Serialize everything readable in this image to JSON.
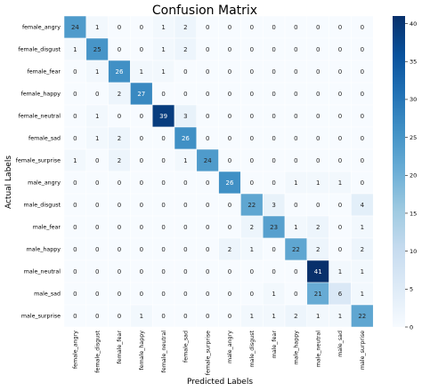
{
  "chart_data": {
    "type": "heatmap",
    "title": "Confusion Matrix",
    "xlabel": "Predicted Labels",
    "ylabel": "Actual Labels",
    "labels": [
      "female_angry",
      "female_disgust",
      "female_fear",
      "female_happy",
      "female_neutral",
      "female_sad",
      "female_surprise",
      "male_angry",
      "male_disgust",
      "male_fear",
      "male_happy",
      "male_neutral",
      "male_sad",
      "male_surprise"
    ],
    "matrix": [
      [
        24,
        1,
        0,
        0,
        1,
        2,
        0,
        0,
        0,
        0,
        0,
        0,
        0,
        0
      ],
      [
        1,
        25,
        0,
        0,
        1,
        2,
        0,
        0,
        0,
        0,
        0,
        0,
        0,
        0
      ],
      [
        0,
        1,
        26,
        1,
        1,
        0,
        0,
        0,
        0,
        0,
        0,
        0,
        0,
        0
      ],
      [
        0,
        0,
        2,
        27,
        0,
        0,
        0,
        0,
        0,
        0,
        0,
        0,
        0,
        0
      ],
      [
        0,
        1,
        0,
        0,
        39,
        3,
        0,
        0,
        0,
        0,
        0,
        0,
        0,
        0
      ],
      [
        0,
        1,
        2,
        0,
        0,
        26,
        0,
        0,
        0,
        0,
        0,
        0,
        0,
        0
      ],
      [
        1,
        0,
        2,
        0,
        0,
        1,
        24,
        0,
        0,
        0,
        0,
        0,
        0,
        0
      ],
      [
        0,
        0,
        0,
        0,
        0,
        0,
        0,
        26,
        0,
        0,
        1,
        1,
        1,
        0
      ],
      [
        0,
        0,
        0,
        0,
        0,
        0,
        0,
        0,
        22,
        3,
        0,
        0,
        0,
        4
      ],
      [
        0,
        0,
        0,
        0,
        0,
        0,
        0,
        0,
        2,
        23,
        1,
        2,
        0,
        1
      ],
      [
        0,
        0,
        0,
        0,
        0,
        0,
        0,
        2,
        1,
        0,
        22,
        2,
        0,
        2
      ],
      [
        0,
        0,
        0,
        0,
        0,
        0,
        0,
        0,
        0,
        0,
        0,
        41,
        1,
        1
      ],
      [
        0,
        0,
        0,
        0,
        0,
        0,
        0,
        0,
        0,
        1,
        0,
        21,
        6,
        1
      ],
      [
        0,
        0,
        0,
        1,
        0,
        0,
        0,
        0,
        1,
        1,
        2,
        1,
        1,
        22
      ]
    ],
    "colormap": "Blues",
    "colorbar": {
      "min": 0,
      "max": 41,
      "ticks": [
        0,
        5,
        10,
        15,
        20,
        25,
        30,
        35,
        40
      ]
    },
    "grid": false,
    "colors": {
      "low": "#f7fbff",
      "high": "#08306b",
      "text_dark": "#262626",
      "text_light": "#ffffff",
      "cell_border": "#ffffff"
    }
  }
}
